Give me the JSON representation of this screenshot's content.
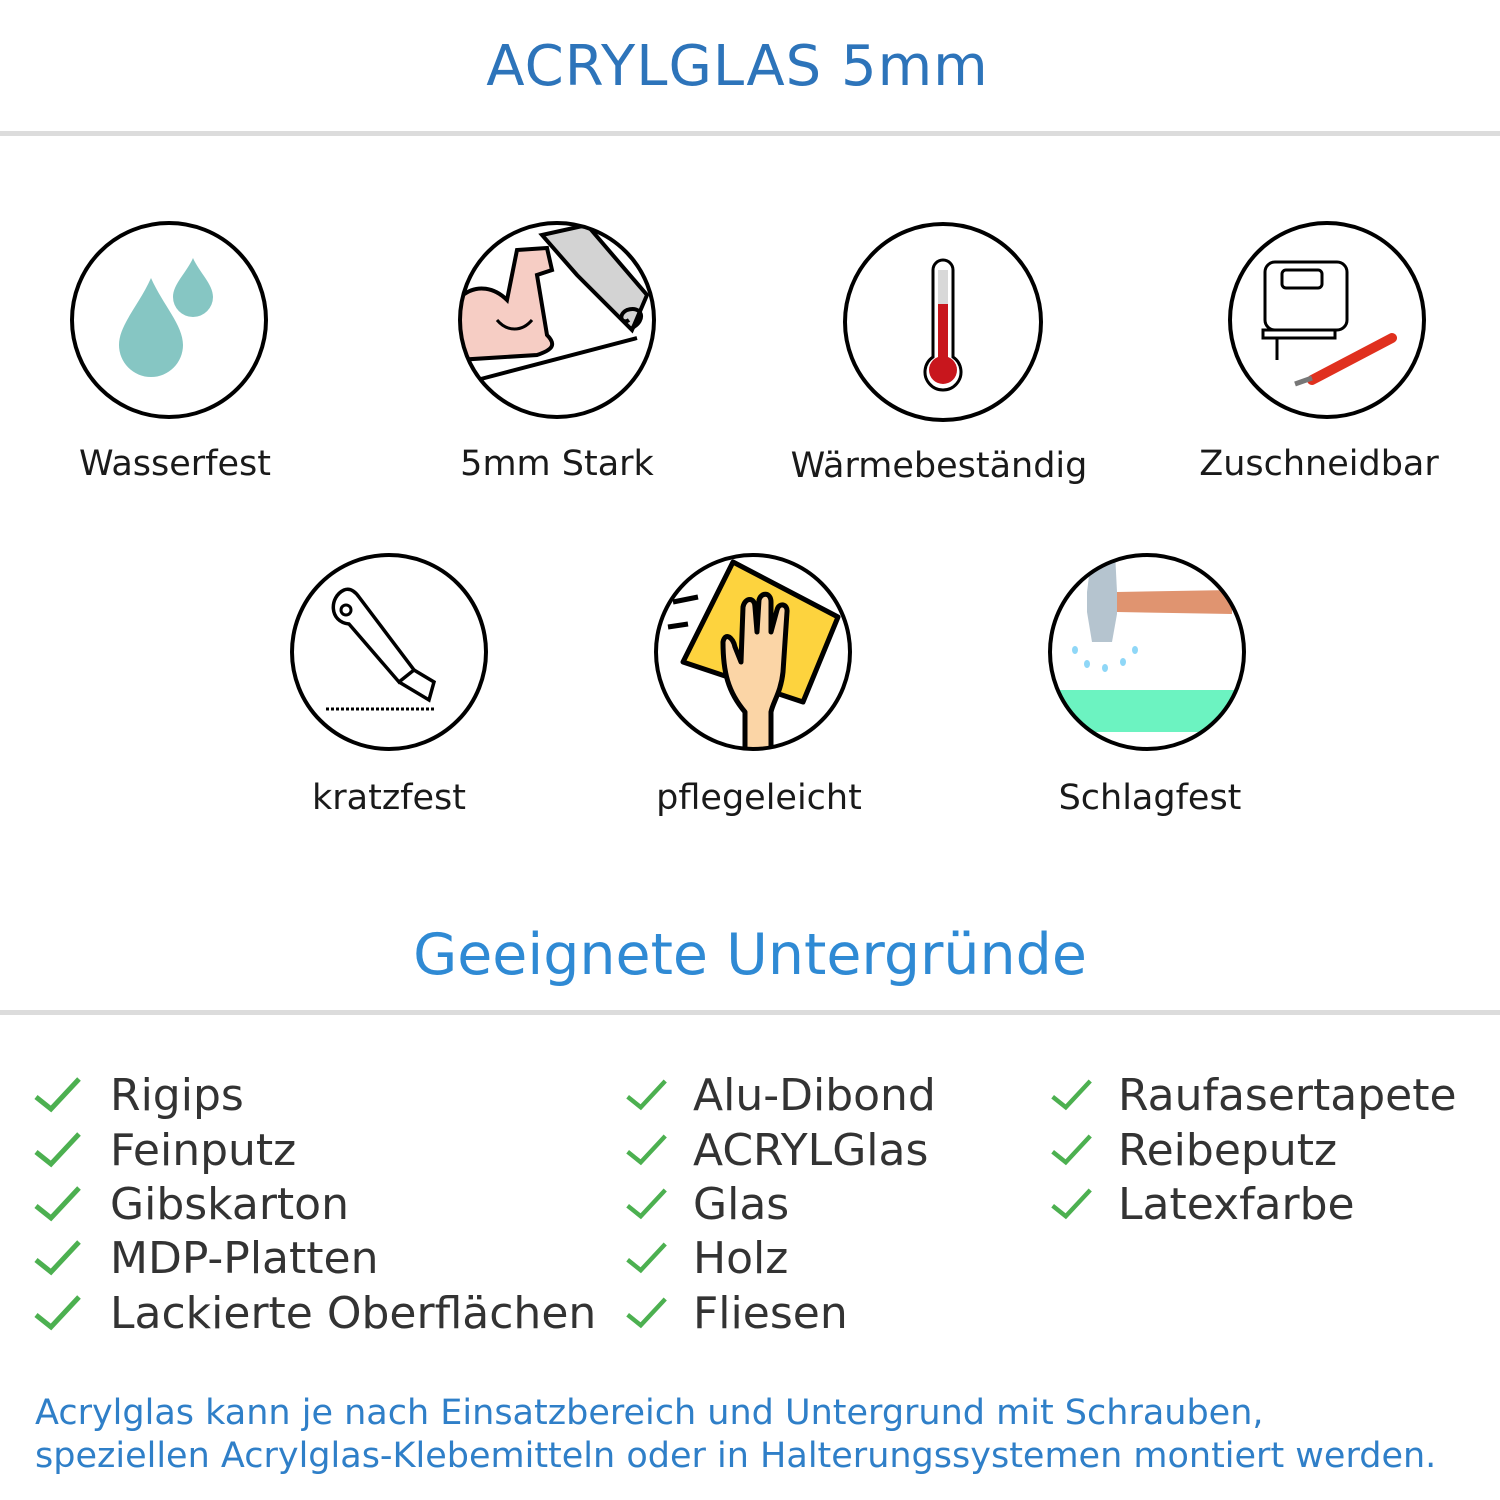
{
  "header": {
    "title": "ACRYLGLAS 5mm"
  },
  "features": [
    {
      "label": "Wasserfest",
      "icon": "water-drops-icon"
    },
    {
      "label": "5mm Stark",
      "icon": "strong-arm-icon"
    },
    {
      "label": "Wärmebeständig",
      "icon": "thermometer-icon"
    },
    {
      "label": "Zuschneidbar",
      "icon": "jigsaw-cutter-icon"
    },
    {
      "label": "kratzfest",
      "icon": "box-cutter-icon"
    },
    {
      "label": "pflegeleicht",
      "icon": "hand-cloth-icon"
    },
    {
      "label": "Schlagfest",
      "icon": "hammer-icon"
    }
  ],
  "surfaces": {
    "title": "Geeignete Untergründe",
    "columns": [
      [
        "Rigips",
        "Feinputz",
        "Gibskarton",
        "MDP-Platten",
        "Lackierte Oberflächen"
      ],
      [
        "Alu-Dibond",
        "ACRYLGlas",
        "Glas",
        "Holz",
        "Fliesen"
      ],
      [
        "Raufasertapete",
        "Reibeputz",
        "Latexfarbe"
      ]
    ]
  },
  "footer": {
    "line1": "Acrylglas kann je nach Einsatzbereich und Untergrund mit Schrauben,",
    "line2": "speziellen Acrylglas-Klebemitteln oder in Halterungssystemen montiert werden."
  },
  "colors": {
    "title": "#2d74ba",
    "subtitle": "#2f8ad4",
    "check": "#4cb050",
    "footer": "#2f7fc8"
  }
}
